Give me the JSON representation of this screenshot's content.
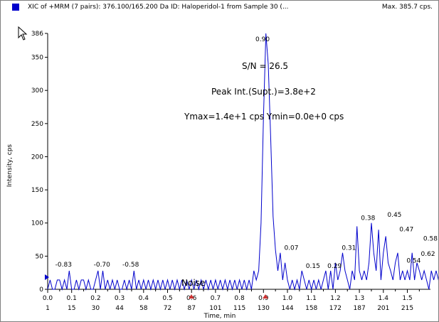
{
  "header": {
    "title": "XIC of +MRM (7 pairs): 376.100/165.200 Da ID: Haloperidol-1 from Sample 30 (...",
    "max_label": "Max. 385.7 cps."
  },
  "colors": {
    "trace": "#0000cc",
    "legend": "#0000cc",
    "marker": "#cc3333",
    "axis": "#000000"
  },
  "icons": {
    "cursor": "arrow-cursor-icon"
  },
  "chart_data": {
    "type": "line",
    "xlabel": "Time, min",
    "ylabel": "Intensity, cps",
    "xlim": [
      0.0,
      1.65
    ],
    "ylim": [
      0,
      386
    ],
    "x_ticks": [
      "0.0",
      "0.1",
      "0.2",
      "0.3",
      "0.4",
      "0.5",
      "0.6",
      "0.7",
      "0.8",
      "0.9",
      "1.0",
      "1.1",
      "1.2",
      "1.3",
      "1.4",
      "1.5"
    ],
    "scan_ticks": [
      {
        "x": 0.0,
        "label": "1"
      },
      {
        "x": 0.1,
        "label": "15"
      },
      {
        "x": 0.2,
        "label": "30"
      },
      {
        "x": 0.3,
        "label": "44"
      },
      {
        "x": 0.4,
        "label": "58"
      },
      {
        "x": 0.5,
        "label": "72"
      },
      {
        "x": 0.6,
        "label": "87"
      },
      {
        "x": 0.7,
        "label": "101"
      },
      {
        "x": 0.8,
        "label": "115"
      },
      {
        "x": 0.9,
        "label": "130"
      },
      {
        "x": 1.0,
        "label": "144"
      },
      {
        "x": 1.1,
        "label": "158"
      },
      {
        "x": 1.2,
        "label": "172"
      },
      {
        "x": 1.3,
        "label": "187"
      },
      {
        "x": 1.4,
        "label": "201"
      },
      {
        "x": 1.5,
        "label": "215"
      }
    ],
    "y_ticks": [
      {
        "v": 0,
        "label": "0"
      },
      {
        "v": 50,
        "label": "50"
      },
      {
        "v": 100,
        "label": "100"
      },
      {
        "v": 150,
        "label": "150"
      },
      {
        "v": 200,
        "label": "200"
      },
      {
        "v": 250,
        "label": "250"
      },
      {
        "v": 300,
        "label": "300"
      },
      {
        "v": 350,
        "label": "350"
      },
      {
        "v": 386,
        "label": "386"
      }
    ],
    "annotations": {
      "sn": "S/N = 26.5",
      "peak_int": "Peak Int.(Supt.)=3.8e+2",
      "yminmax": "Ymax=1.4e+1 cps  Ymin=0.0e+0 cps",
      "noise": "Noise"
    },
    "peak_labels": [
      {
        "x": 0.09,
        "y": 30,
        "label": "-0.83"
      },
      {
        "x": 0.25,
        "y": 30,
        "label": "-0.70"
      },
      {
        "x": 0.37,
        "y": 30,
        "label": "-0.58"
      },
      {
        "x": 0.92,
        "y": 370,
        "label": "0.90"
      },
      {
        "x": 1.04,
        "y": 55,
        "label": "0.07"
      },
      {
        "x": 1.13,
        "y": 28,
        "label": "0.15"
      },
      {
        "x": 1.22,
        "y": 28,
        "label": "0.29"
      },
      {
        "x": 1.28,
        "y": 55,
        "label": "0.31"
      },
      {
        "x": 1.36,
        "y": 100,
        "label": "0.38"
      },
      {
        "x": 1.47,
        "y": 105,
        "label": "0.45"
      },
      {
        "x": 1.52,
        "y": 83,
        "label": "0.47"
      },
      {
        "x": 1.55,
        "y": 36,
        "label": "0.54"
      },
      {
        "x": 1.62,
        "y": 69,
        "label": "0.58"
      },
      {
        "x": 1.61,
        "y": 46,
        "label": "0.62"
      }
    ],
    "series": [
      {
        "x": [
          0.0,
          0.01,
          0.02,
          0.03,
          0.04,
          0.05,
          0.06,
          0.07,
          0.08,
          0.09,
          0.1,
          0.11,
          0.12,
          0.13,
          0.14,
          0.15,
          0.16,
          0.17,
          0.18,
          0.19,
          0.2,
          0.21,
          0.22,
          0.23,
          0.24,
          0.25,
          0.26,
          0.27,
          0.28,
          0.29,
          0.3,
          0.31,
          0.32,
          0.33,
          0.34,
          0.35,
          0.36,
          0.37,
          0.38,
          0.39,
          0.4,
          0.41,
          0.42,
          0.43,
          0.44,
          0.45,
          0.46,
          0.47,
          0.48,
          0.49,
          0.5,
          0.51,
          0.52,
          0.53,
          0.54,
          0.55,
          0.56,
          0.57,
          0.58,
          0.59,
          0.6,
          0.61,
          0.62,
          0.63,
          0.64,
          0.65,
          0.66,
          0.67,
          0.68,
          0.69,
          0.7,
          0.71,
          0.72,
          0.73,
          0.74,
          0.75,
          0.76,
          0.77,
          0.78,
          0.79,
          0.8,
          0.81,
          0.82,
          0.83,
          0.84,
          0.85,
          0.86,
          0.87,
          0.88,
          0.89,
          0.9,
          0.91,
          0.92,
          0.93,
          0.94,
          0.95,
          0.96,
          0.97,
          0.98,
          0.99,
          1.0,
          1.01,
          1.02,
          1.03,
          1.04,
          1.05,
          1.06,
          1.07,
          1.08,
          1.09,
          1.1,
          1.11,
          1.12,
          1.13,
          1.14,
          1.15,
          1.16,
          1.17,
          1.18,
          1.19,
          1.2,
          1.21,
          1.22,
          1.23,
          1.24,
          1.25,
          1.26,
          1.27,
          1.28,
          1.29,
          1.3,
          1.31,
          1.32,
          1.33,
          1.34,
          1.35,
          1.36,
          1.37,
          1.38,
          1.39,
          1.4,
          1.41,
          1.42,
          1.43,
          1.44,
          1.45,
          1.46,
          1.47,
          1.48,
          1.49,
          1.5,
          1.51,
          1.52,
          1.53,
          1.54,
          1.55,
          1.56,
          1.57,
          1.58,
          1.59,
          1.6,
          1.61,
          1.62,
          1.63,
          1.64
        ],
        "y": [
          0,
          14,
          0,
          0,
          14,
          14,
          0,
          14,
          0,
          28,
          0,
          0,
          14,
          0,
          14,
          14,
          0,
          14,
          0,
          0,
          14,
          28,
          0,
          28,
          0,
          14,
          0,
          14,
          0,
          14,
          0,
          0,
          14,
          0,
          14,
          0,
          28,
          0,
          14,
          0,
          14,
          0,
          14,
          0,
          14,
          0,
          14,
          0,
          14,
          0,
          14,
          0,
          14,
          0,
          14,
          0,
          14,
          0,
          14,
          0,
          14,
          0,
          14,
          0,
          14,
          0,
          14,
          0,
          14,
          0,
          14,
          0,
          14,
          0,
          14,
          0,
          14,
          0,
          14,
          0,
          14,
          0,
          14,
          0,
          14,
          0,
          28,
          14,
          28,
          100,
          260,
          386,
          340,
          230,
          110,
          60,
          28,
          55,
          14,
          40,
          14,
          0,
          14,
          0,
          14,
          0,
          28,
          14,
          0,
          14,
          0,
          14,
          0,
          14,
          0,
          14,
          28,
          0,
          28,
          0,
          40,
          14,
          28,
          55,
          28,
          14,
          0,
          28,
          14,
          95,
          28,
          14,
          28,
          14,
          40,
          100,
          55,
          28,
          90,
          14,
          55,
          80,
          40,
          28,
          14,
          40,
          55,
          14,
          28,
          14,
          28,
          14,
          55,
          14,
          40,
          28,
          14,
          28,
          14,
          0,
          28,
          14,
          28,
          14,
          0
        ]
      }
    ]
  }
}
